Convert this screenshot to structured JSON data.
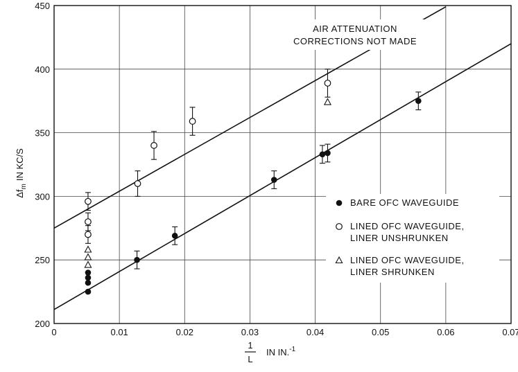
{
  "chart_data": {
    "type": "scatter",
    "annotation": [
      "AIR ATTENUATION",
      "CORRECTIONS NOT MADE"
    ],
    "xlabel": {
      "fraction_num": "1",
      "fraction_den": "L",
      "units": "IN IN.",
      "exponent": "-1"
    },
    "ylabel": {
      "delta": "Δf",
      "subscript": "m",
      "units": "IN KC/S"
    },
    "xlim": [
      0,
      0.07
    ],
    "ylim": [
      200,
      450
    ],
    "xticks": [
      0,
      0.01,
      0.02,
      0.03,
      0.04,
      0.05,
      0.06,
      0.07
    ],
    "xtick_labels": [
      "0",
      "0.01",
      "0.02",
      "0.03",
      "0.04",
      "0.05",
      "0.06",
      "0.07"
    ],
    "yticks": [
      200,
      250,
      300,
      350,
      400,
      450
    ],
    "ytick_labels": [
      "200",
      "250",
      "300",
      "350",
      "400",
      "450"
    ],
    "grid": true,
    "legend_position": "lower-right",
    "legend": [
      {
        "marker": "filled-circle",
        "lines": [
          "BARE OFC WAVEGUIDE"
        ]
      },
      {
        "marker": "open-circle",
        "lines": [
          "LINED OFC WAVEGUIDE,",
          "LINER UNSHRUNKEN"
        ]
      },
      {
        "marker": "triangle",
        "lines": [
          "LINED OFC WAVEGUIDE,",
          "LINER SHRUNKEN"
        ]
      }
    ],
    "series": [
      {
        "name": "BARE OFC WAVEGUIDE",
        "marker": "filled-circle",
        "points": [
          {
            "x": 0.0052,
            "y": 225
          },
          {
            "x": 0.0052,
            "y": 232
          },
          {
            "x": 0.0052,
            "y": 236
          },
          {
            "x": 0.0052,
            "y": 240
          },
          {
            "x": 0.0127,
            "y": 250,
            "err": 7
          },
          {
            "x": 0.0185,
            "y": 269,
            "err": 7
          },
          {
            "x": 0.0337,
            "y": 313,
            "err": 7
          },
          {
            "x": 0.0411,
            "y": 333,
            "err": 7
          },
          {
            "x": 0.0419,
            "y": 334,
            "err": 7
          },
          {
            "x": 0.0558,
            "y": 375,
            "err": 7
          }
        ],
        "fit_line": {
          "x": [
            0,
            0.07
          ],
          "y": [
            211,
            420
          ]
        }
      },
      {
        "name": "LINED OFC WAVEGUIDE, LINER UNSHRUNKEN",
        "marker": "open-circle",
        "points": [
          {
            "x": 0.0052,
            "y": 270,
            "err": 7
          },
          {
            "x": 0.0052,
            "y": 280,
            "err": 7
          },
          {
            "x": 0.0052,
            "y": 296,
            "err": 7
          },
          {
            "x": 0.0128,
            "y": 310,
            "err": 10
          },
          {
            "x": 0.0153,
            "y": 340,
            "err": 11
          },
          {
            "x": 0.0212,
            "y": 359,
            "err": 11
          },
          {
            "x": 0.0419,
            "y": 389,
            "err": 11
          }
        ],
        "fit_line": {
          "x": [
            0,
            0.06
          ],
          "y": [
            275,
            449
          ]
        }
      },
      {
        "name": "LINED OFC WAVEGUIDE, LINER SHRUNKEN",
        "marker": "triangle",
        "points": [
          {
            "x": 0.0052,
            "y": 246
          },
          {
            "x": 0.0052,
            "y": 252
          },
          {
            "x": 0.0052,
            "y": 258
          },
          {
            "x": 0.0419,
            "y": 374
          }
        ]
      }
    ]
  }
}
